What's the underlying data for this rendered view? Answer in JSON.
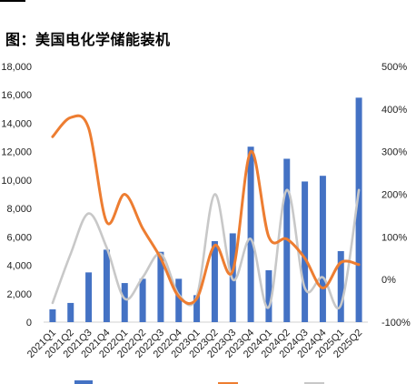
{
  "title": "图：美国电化学储能装机",
  "chart_data": {
    "type": "bar",
    "categories": [
      "2021Q1",
      "2021Q2",
      "2021Q3",
      "2021Q4",
      "2022Q1",
      "2022Q2",
      "2022Q3",
      "2022Q4",
      "2023Q1",
      "2023Q2",
      "2023Q3",
      "2023Q4",
      "2024Q1",
      "2024Q2",
      "2024Q3",
      "2024Q4",
      "2025Q1",
      "2025Q2"
    ],
    "series": [
      {
        "type": "bar",
        "axis": "left",
        "color": "#4472c4",
        "values": [
          900,
          1350,
          3500,
          5100,
          2750,
          3050,
          4950,
          3050,
          1900,
          5700,
          6250,
          12350,
          3650,
          11500,
          9900,
          10300,
          5000,
          15800
        ]
      },
      {
        "type": "line",
        "axis": "right",
        "color": "#ed7d31",
        "values": [
          335,
          380,
          355,
          135,
          200,
          120,
          50,
          -40,
          -45,
          80,
          20,
          300,
          100,
          95,
          50,
          -20,
          40,
          35
        ]
      },
      {
        "type": "line",
        "axis": "right",
        "color": "#c8c8c8",
        "values": [
          -55,
          60,
          155,
          75,
          -45,
          5,
          60,
          -35,
          -40,
          200,
          0,
          95,
          -65,
          210,
          -20,
          5,
          -60,
          210
        ]
      }
    ],
    "y_left": {
      "min": 0,
      "max": 18000,
      "step": 2000,
      "ticks": [
        "0",
        "2,000",
        "4,000",
        "6,000",
        "8,000",
        "10,000",
        "12,000",
        "14,000",
        "16,000",
        "18,000"
      ]
    },
    "y_right": {
      "min": -100,
      "max": 500,
      "step": 100,
      "ticks": [
        "-100%",
        "0%",
        "100%",
        "200%",
        "300%",
        "400%",
        "500%"
      ]
    },
    "grid": false,
    "legend_position": "bottom"
  },
  "colors": {
    "bar": "#4472c4",
    "orange": "#ed7d31",
    "gray": "#c8c8c8"
  }
}
